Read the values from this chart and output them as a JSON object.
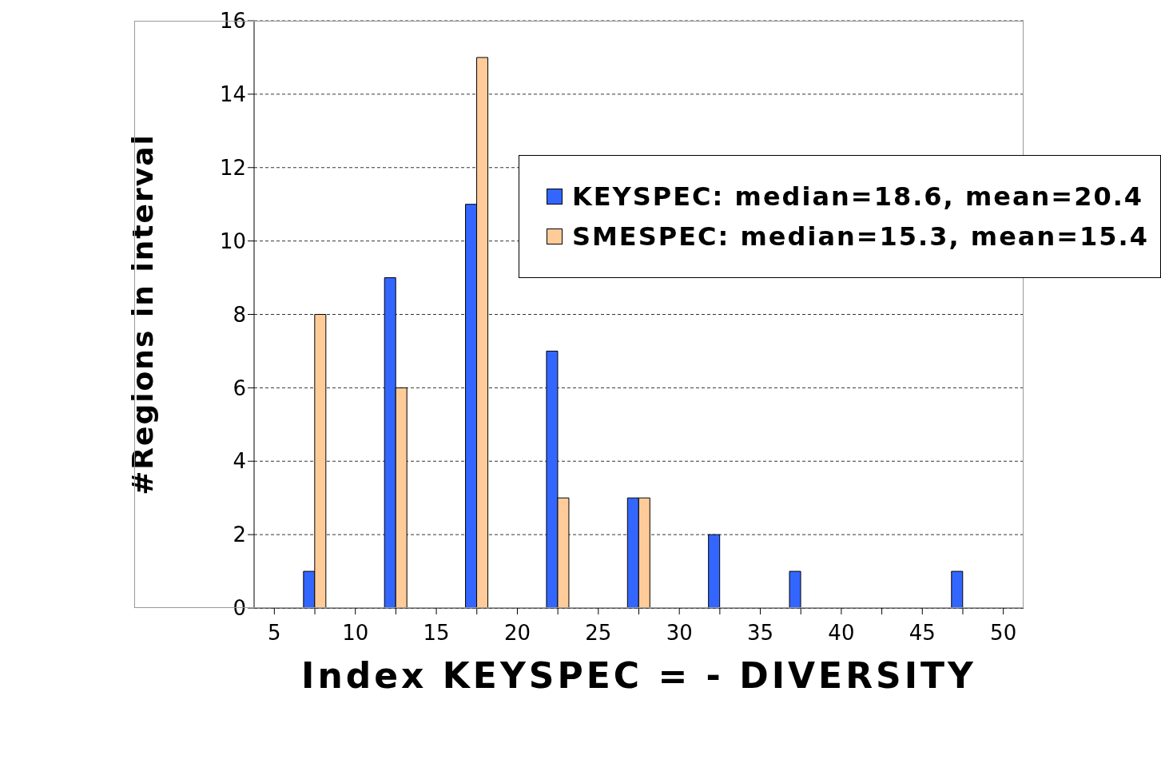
{
  "chart_data": {
    "type": "bar",
    "xlabel": "Index KEYSPEC = - DIVERSITY",
    "ylabel": "#Regions in interval",
    "categories": [
      "5",
      null,
      "10",
      null,
      "15",
      null,
      "20",
      null,
      "25",
      null,
      "30",
      null,
      "35",
      null,
      "40",
      null,
      "45",
      null,
      "50"
    ],
    "series": [
      {
        "name": "KEYSPEC: median=18.6, mean=20.4",
        "color": "#3366ff",
        "values": [
          0,
          1,
          0,
          9,
          0,
          11,
          0,
          7,
          0,
          3,
          0,
          2,
          0,
          1,
          0,
          0,
          0,
          1,
          0
        ]
      },
      {
        "name": "SMESPEC: median=15.3, mean=15.4",
        "color": "#ffcc99",
        "values": [
          0,
          8,
          0,
          6,
          0,
          15,
          0,
          3,
          0,
          3,
          0,
          0,
          0,
          0,
          0,
          0,
          0,
          0,
          0
        ]
      }
    ],
    "ylim": [
      0,
      16
    ],
    "yticks": [
      0,
      2,
      4,
      6,
      8,
      10,
      12,
      14,
      16
    ],
    "grid": "y",
    "legend": "top right"
  }
}
